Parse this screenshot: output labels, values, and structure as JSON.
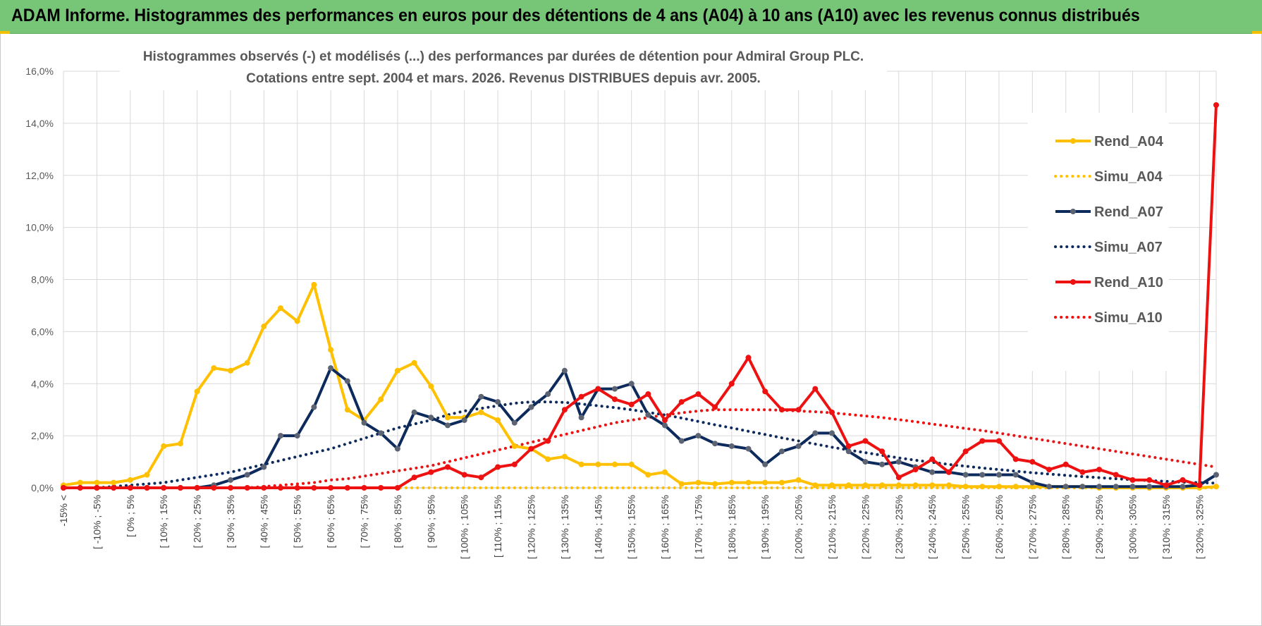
{
  "banner": {
    "title": "ADAM Informe. Histogrammes des performances en euros pour des détentions de 4 ans (A04) à 10 ans (A10) avec les revenus connus distribués"
  },
  "colors": {
    "a04": "#ffc000",
    "a07": "#0d2a5c",
    "a07_marker": "#5c6473",
    "a10": "#ee1111",
    "grid": "#d9d9d9",
    "banner": "#77c577"
  },
  "chart_data": {
    "type": "line",
    "title_line1": "Histogrammes observés (-) et modélisés (...) des performances par durées de détention pour Admiral Group PLC.",
    "title_line2": "Cotations entre sept. 2004 et mars. 2026. Revenus DISTRIBUES depuis avr. 2005.",
    "ylim": [
      0,
      16
    ],
    "y_ticks": [
      "0,0%",
      "2,0%",
      "4,0%",
      "6,0%",
      "8,0%",
      "10,0%",
      "12,0%",
      "14,0%",
      "16,0%"
    ],
    "x_labels": [
      "-15% <",
      "[ -10% ; -5%",
      "[ 0% ; 5%",
      "[ 10% ; 15%",
      "[ 20% ; 25%",
      "[ 30% ; 35%",
      "[ 40% ; 45%",
      "[ 50% ; 55%",
      "[ 60% ; 65%",
      "[ 70% ; 75%",
      "[ 80% ; 85%",
      "[ 90% ; 95%",
      "[ 100% ; 105%",
      "[ 110% ; 115%",
      "[ 120% ; 125%",
      "[ 130% ; 135%",
      "[ 140% ; 145%",
      "[ 150% ; 155%",
      "[ 160% ; 165%",
      "[ 170% ; 175%",
      "[ 180% ; 185%",
      "[ 190% ; 195%",
      "[ 200% ; 205%",
      "[ 210% ; 215%",
      "[ 220% ; 225%",
      "[ 230% ; 235%",
      "[ 240% ; 245%",
      "[ 250% ; 255%",
      "[ 260% ; 265%",
      "[ 270% ; 275%",
      "[ 280% ; 285%",
      "[ 290% ; 295%",
      "[ 300% ; 305%",
      "[ 310% ; 315%",
      "[ 320% ; 325%"
    ],
    "series": [
      {
        "name": "Rend_A04",
        "style": "solid",
        "color": "#ffc000",
        "values": [
          0.1,
          0.2,
          0.2,
          0.2,
          0.3,
          0.5,
          1.6,
          1.7,
          3.7,
          4.6,
          4.5,
          4.8,
          6.2,
          6.9,
          6.4,
          7.8,
          5.3,
          3.0,
          2.6,
          3.4,
          4.5,
          4.8,
          3.9,
          2.7,
          2.7,
          2.9,
          2.6,
          1.6,
          1.5,
          1.1,
          1.2,
          0.9,
          0.9,
          0.9,
          0.9,
          0.5,
          0.6,
          0.15,
          0.2,
          0.15,
          0.2,
          0.2,
          0.2,
          0.2,
          0.3,
          0.1,
          0.1,
          0.1,
          0.1,
          0.1,
          0.1,
          0.1,
          0.1,
          0.1,
          0.05,
          0.05,
          0.05,
          0.05,
          0.05,
          0.05,
          0.05,
          0.05,
          0,
          0,
          0,
          0,
          0,
          0,
          0,
          0.05
        ]
      },
      {
        "name": "Simu_A04",
        "style": "dotted",
        "color": "#ffc000",
        "values": [
          0,
          0,
          0,
          0,
          0,
          0,
          0,
          0,
          0,
          0,
          0,
          0,
          0,
          0,
          0,
          0,
          0,
          0,
          0,
          0,
          0,
          0,
          0,
          0,
          0,
          0,
          0,
          0,
          0,
          0,
          0,
          0,
          0,
          0,
          0,
          0,
          0,
          0,
          0,
          0,
          0,
          0,
          0,
          0,
          0,
          0,
          0,
          0,
          0,
          0,
          0,
          0,
          0,
          0,
          0,
          0,
          0,
          0,
          0,
          0,
          0,
          0,
          0,
          0,
          0,
          0,
          0,
          0,
          0,
          0
        ]
      },
      {
        "name": "Rend_A07",
        "style": "solid",
        "color": "#0d2a5c",
        "values": [
          0,
          0,
          0,
          0,
          0,
          0,
          0,
          0,
          0,
          0.1,
          0.3,
          0.5,
          0.8,
          2.0,
          2.0,
          3.1,
          4.6,
          4.1,
          2.5,
          2.1,
          1.5,
          2.9,
          2.7,
          2.4,
          2.6,
          3.5,
          3.3,
          2.5,
          3.1,
          3.6,
          4.5,
          2.7,
          3.8,
          3.8,
          4.0,
          2.8,
          2.4,
          1.8,
          2.0,
          1.7,
          1.6,
          1.5,
          0.9,
          1.4,
          1.6,
          2.1,
          2.1,
          1.4,
          1.0,
          0.9,
          1.0,
          0.8,
          0.6,
          0.6,
          0.5,
          0.5,
          0.5,
          0.5,
          0.2,
          0.05,
          0.05,
          0.05,
          0.05,
          0.05,
          0.05,
          0.05,
          0.05,
          0.05,
          0.1,
          0.5
        ]
      },
      {
        "name": "Simu_A07",
        "style": "dotted",
        "color": "#0d2a5c",
        "values": [
          0,
          0,
          0,
          0.05,
          0.1,
          0.15,
          0.2,
          0.3,
          0.4,
          0.5,
          0.6,
          0.75,
          0.9,
          1.05,
          1.2,
          1.35,
          1.5,
          1.7,
          1.9,
          2.1,
          2.3,
          2.45,
          2.6,
          2.8,
          2.95,
          3.05,
          3.15,
          3.25,
          3.3,
          3.3,
          3.28,
          3.22,
          3.15,
          3.08,
          3.0,
          2.9,
          2.8,
          2.68,
          2.55,
          2.42,
          2.3,
          2.17,
          2.05,
          1.92,
          1.8,
          1.68,
          1.56,
          1.45,
          1.35,
          1.25,
          1.15,
          1.06,
          0.98,
          0.9,
          0.83,
          0.76,
          0.7,
          0.64,
          0.58,
          0.53,
          0.48,
          0.43,
          0.39,
          0.35,
          0.31,
          0.28,
          0.25,
          0.22,
          0.2,
          0.18
        ]
      },
      {
        "name": "Rend_A10",
        "style": "solid",
        "color": "#ee1111",
        "values": [
          0,
          0,
          0,
          0,
          0,
          0,
          0,
          0,
          0,
          0,
          0,
          0,
          0,
          0,
          0,
          0,
          0,
          0,
          0,
          0,
          0,
          0.4,
          0.6,
          0.8,
          0.5,
          0.4,
          0.8,
          0.9,
          1.5,
          1.8,
          3.0,
          3.5,
          3.8,
          3.4,
          3.2,
          3.6,
          2.6,
          3.3,
          3.6,
          3.1,
          4.0,
          5.0,
          3.7,
          3.0,
          3.0,
          3.8,
          2.9,
          1.6,
          1.8,
          1.4,
          0.4,
          0.7,
          1.1,
          0.6,
          1.4,
          1.8,
          1.8,
          1.1,
          1.0,
          0.7,
          0.9,
          0.6,
          0.7,
          0.5,
          0.3,
          0.3,
          0.1,
          0.3,
          0.1,
          14.7
        ]
      },
      {
        "name": "Simu_A10",
        "style": "dotted",
        "color": "#ee1111",
        "values": [
          0,
          0,
          0,
          0,
          0,
          0,
          0,
          0,
          0,
          0,
          0,
          0,
          0.05,
          0.1,
          0.15,
          0.2,
          0.3,
          0.35,
          0.45,
          0.55,
          0.65,
          0.75,
          0.85,
          1.0,
          1.15,
          1.3,
          1.45,
          1.6,
          1.75,
          1.9,
          2.05,
          2.2,
          2.35,
          2.5,
          2.6,
          2.7,
          2.8,
          2.88,
          2.95,
          3.0,
          3.0,
          3.0,
          3.0,
          2.98,
          2.95,
          2.92,
          2.88,
          2.82,
          2.76,
          2.7,
          2.62,
          2.54,
          2.45,
          2.37,
          2.28,
          2.2,
          2.1,
          2.0,
          1.9,
          1.8,
          1.7,
          1.6,
          1.5,
          1.4,
          1.3,
          1.2,
          1.1,
          1.0,
          0.9,
          0.8
        ]
      }
    ]
  }
}
